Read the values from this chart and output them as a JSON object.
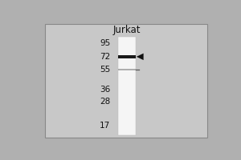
{
  "fig_width": 3.0,
  "fig_height": 2.0,
  "dpi": 100,
  "outer_bg": "#b0b0b0",
  "panel_bg": "#c8c8c8",
  "lane_color": "#e8e8e8",
  "lane_color2": "#f5f5f5",
  "col_label": "Jurkat",
  "col_label_fontsize": 8.5,
  "mw_markers": [
    95,
    72,
    55,
    36,
    28,
    17
  ],
  "mw_fontsize": 7.5,
  "band_mw": 72,
  "band_faint_mw": 55,
  "band_color": "#1a1a1a",
  "faint_band_color": "#909090",
  "arrow_color": "#111111"
}
